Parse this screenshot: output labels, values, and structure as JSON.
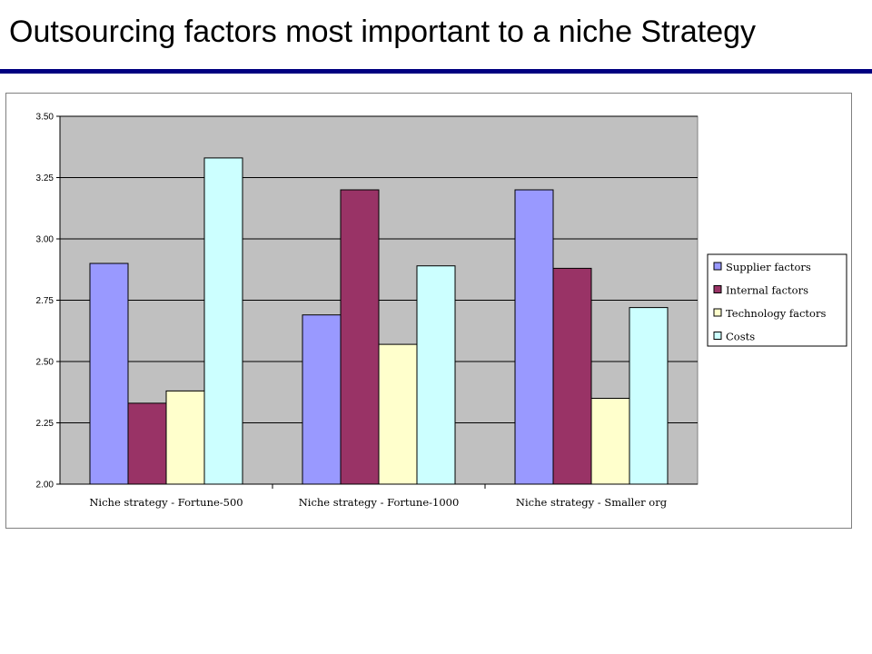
{
  "slide": {
    "title": "Outsourcing factors most important to a niche Strategy"
  },
  "chart_data": {
    "type": "bar",
    "categories": [
      "Niche strategy  - Fortune-500",
      "Niche strategy  - Fortune-1000",
      "Niche strategy  - Smaller org"
    ],
    "series": [
      {
        "name": "Supplier factors",
        "values": [
          2.9,
          2.69,
          3.2
        ]
      },
      {
        "name": "Internal factors",
        "values": [
          2.33,
          3.2,
          2.88
        ]
      },
      {
        "name": "Technology factors",
        "values": [
          2.38,
          2.57,
          2.35
        ]
      },
      {
        "name": "Costs",
        "values": [
          3.33,
          2.89,
          2.72
        ]
      }
    ],
    "colors": [
      "#9999ff",
      "#993366",
      "#ffffcc",
      "#ccffff"
    ],
    "plot_background": "#c0c0c0",
    "ylim": [
      2.0,
      3.5
    ],
    "yticks": [
      "2.00",
      "2.25",
      "2.50",
      "2.75",
      "3.00",
      "3.25",
      "3.50"
    ],
    "grid": true,
    "legend_position": "right",
    "xlabel": "",
    "ylabel": ""
  }
}
